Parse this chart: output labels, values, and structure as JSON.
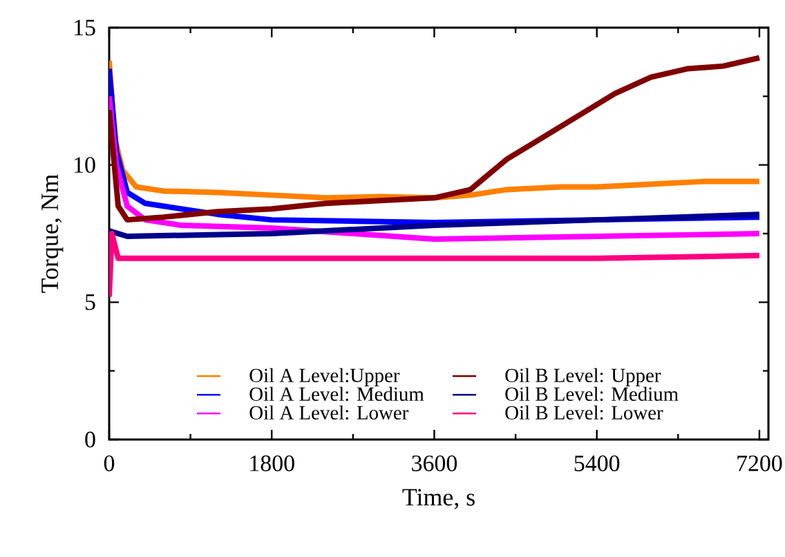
{
  "chart_data": {
    "type": "line",
    "xlabel": "Time, s",
    "ylabel": "Torque, Nm",
    "xlim": [
      0,
      7300
    ],
    "xticks": [
      0,
      1800,
      3600,
      5400,
      7200
    ],
    "ylim": [
      0,
      15
    ],
    "yticks": [
      0,
      5,
      10,
      15
    ],
    "grid": false,
    "legend": "bottom",
    "marker": "none",
    "line_style": "solid",
    "series": [
      {
        "name": "Oil A Level:Upper",
        "color": "#ff8000",
        "x": [
          0,
          60,
          150,
          300,
          600,
          1200,
          1800,
          2400,
          3000,
          3600,
          4000,
          4400,
          5000,
          5400,
          6000,
          6600,
          7200
        ],
        "values": [
          13.8,
          11,
          9.8,
          9.2,
          9.05,
          9,
          8.9,
          8.8,
          8.85,
          8.8,
          8.9,
          9.1,
          9.2,
          9.2,
          9.3,
          9.4,
          9.4
        ]
      },
      {
        "name": "Oil A Level: Medium",
        "color": "#0000ff",
        "x": [
          0,
          80,
          200,
          400,
          800,
          1200,
          1800,
          3600,
          5400,
          7200
        ],
        "values": [
          13.5,
          10.5,
          9,
          8.6,
          8.4,
          8.2,
          8.0,
          7.9,
          8.0,
          8.1
        ]
      },
      {
        "name": "Oil A Level: Lower",
        "color": "#ff00ff",
        "x": [
          0,
          80,
          200,
          400,
          800,
          1800,
          3600,
          5400,
          7200
        ],
        "values": [
          12.5,
          10,
          8.5,
          8.0,
          7.8,
          7.7,
          7.3,
          7.4,
          7.5
        ]
      },
      {
        "name": "Oil B Level: Upper",
        "color": "#800000",
        "x": [
          0,
          100,
          200,
          600,
          1200,
          1800,
          2400,
          3000,
          3600,
          4000,
          4400,
          4800,
          5200,
          5600,
          6000,
          6400,
          6800,
          7200
        ],
        "values": [
          12,
          8.5,
          8.0,
          8.1,
          8.3,
          8.4,
          8.6,
          8.7,
          8.8,
          9.1,
          10.2,
          11.0,
          11.8,
          12.6,
          13.2,
          13.5,
          13.6,
          13.9
        ]
      },
      {
        "name": "Oil B Level: Medium",
        "color": "#00008b",
        "x": [
          0,
          200,
          1800,
          3600,
          5400,
          7200
        ],
        "values": [
          7.6,
          7.4,
          7.5,
          7.8,
          8.0,
          8.2
        ]
      },
      {
        "name": "Oil B Level: Lower",
        "color": "#ff0080",
        "x": [
          0,
          30,
          100,
          1800,
          3600,
          5400,
          7200
        ],
        "values": [
          5.2,
          7.5,
          6.6,
          6.6,
          6.6,
          6.6,
          6.7
        ]
      }
    ]
  }
}
